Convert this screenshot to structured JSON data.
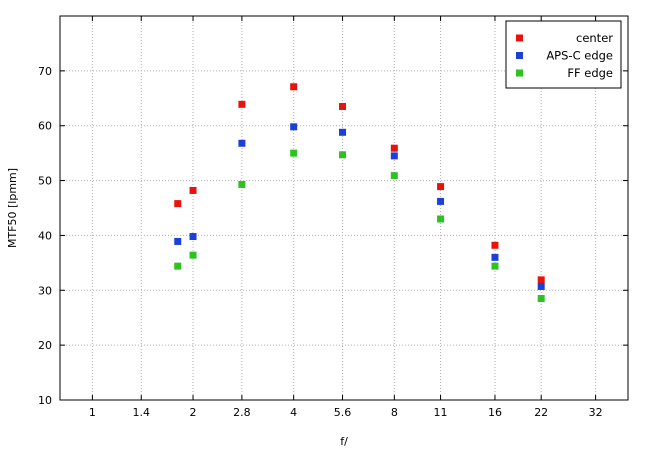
{
  "chart_data": {
    "type": "scatter",
    "title": "",
    "xlabel": "f/",
    "ylabel": "MTF50 [lpmm]",
    "xscale": "log2",
    "x_ticks": [
      1,
      1.4,
      2,
      2.8,
      4,
      5.6,
      8,
      11,
      16,
      22,
      32
    ],
    "x_tick_labels": [
      "1",
      "1.4",
      "2",
      "2.8",
      "4",
      "5.6",
      "8",
      "11",
      "16",
      "22",
      "32"
    ],
    "xlim": [
      0.8,
      40
    ],
    "ylim": [
      10,
      80
    ],
    "y_ticks": [
      10,
      20,
      30,
      40,
      50,
      60,
      70
    ],
    "grid": true,
    "legend_position": "top-right",
    "series": [
      {
        "name": "center",
        "color": "#e8130d",
        "points": [
          {
            "x": 1.8,
            "y": 45.8
          },
          {
            "x": 2.0,
            "y": 48.2
          },
          {
            "x": 2.8,
            "y": 63.9
          },
          {
            "x": 4.0,
            "y": 67.1
          },
          {
            "x": 5.6,
            "y": 63.5
          },
          {
            "x": 8.0,
            "y": 55.9
          },
          {
            "x": 11.0,
            "y": 48.9
          },
          {
            "x": 16.0,
            "y": 38.2
          },
          {
            "x": 22.0,
            "y": 31.9
          }
        ]
      },
      {
        "name": "APS-C edge",
        "color": "#1d3fd9",
        "points": [
          {
            "x": 1.8,
            "y": 38.9
          },
          {
            "x": 2.0,
            "y": 39.8
          },
          {
            "x": 2.8,
            "y": 56.8
          },
          {
            "x": 4.0,
            "y": 59.8
          },
          {
            "x": 5.6,
            "y": 58.8
          },
          {
            "x": 8.0,
            "y": 54.5
          },
          {
            "x": 11.0,
            "y": 46.2
          },
          {
            "x": 16.0,
            "y": 36.0
          },
          {
            "x": 22.0,
            "y": 30.7
          }
        ]
      },
      {
        "name": "FF edge",
        "color": "#2dc21f",
        "points": [
          {
            "x": 1.8,
            "y": 34.4
          },
          {
            "x": 2.0,
            "y": 36.4
          },
          {
            "x": 2.8,
            "y": 49.3
          },
          {
            "x": 4.0,
            "y": 55.0
          },
          {
            "x": 5.6,
            "y": 54.7
          },
          {
            "x": 8.0,
            "y": 50.9
          },
          {
            "x": 11.0,
            "y": 43.0
          },
          {
            "x": 16.0,
            "y": 34.4
          },
          {
            "x": 22.0,
            "y": 28.5
          }
        ]
      }
    ]
  }
}
